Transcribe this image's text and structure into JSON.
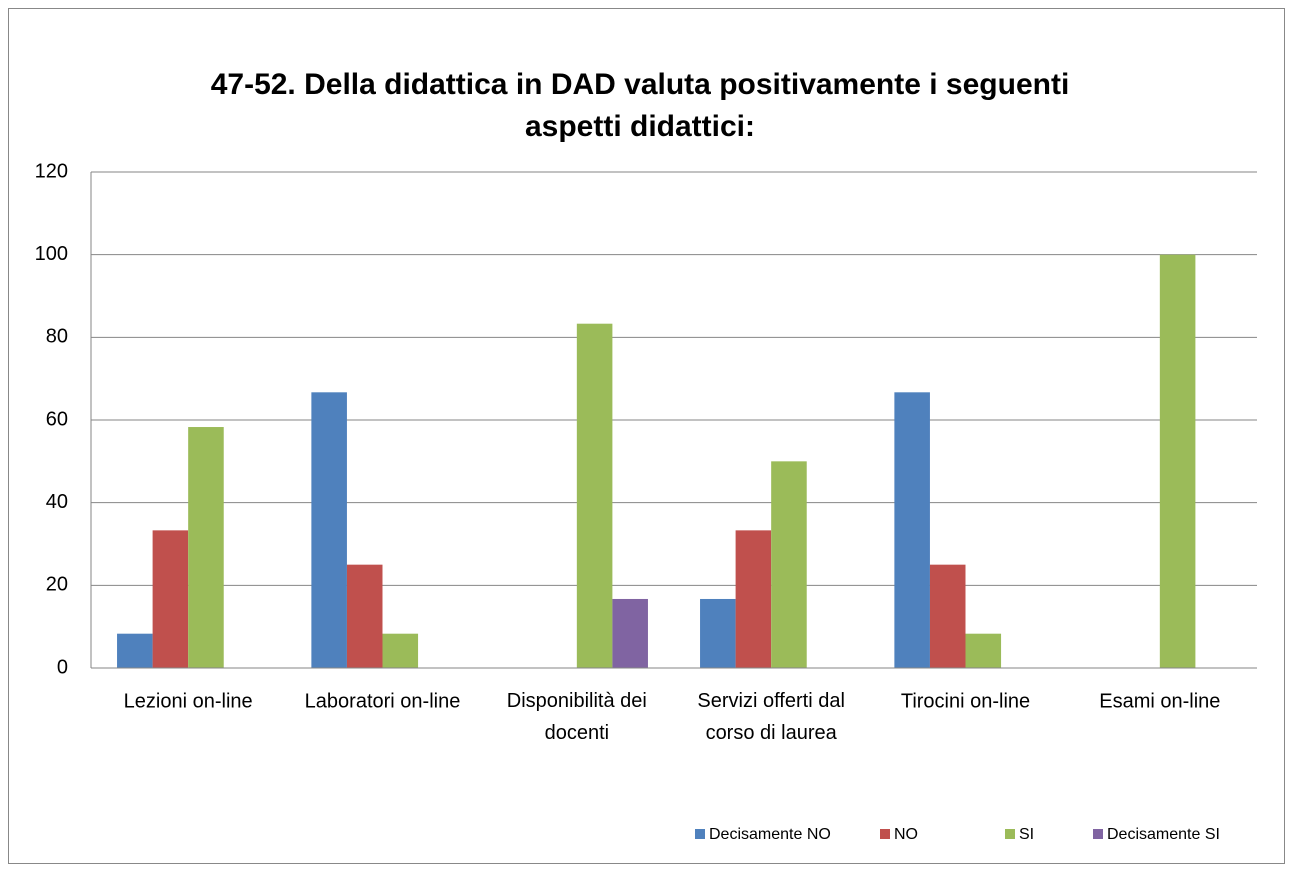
{
  "chart_data": {
    "type": "bar",
    "title_lines": [
      "47-52.  Della didattica in DAD valuta positivamente i seguenti",
      "aspetti didattici:"
    ],
    "categories": [
      "Lezioni on-line",
      "Laboratori on-line",
      "Disponibilità dei docenti",
      "Servizi offerti dal corso di laurea",
      "Tirocini on-line",
      "Esami on-line"
    ],
    "series": [
      {
        "name": "Decisamente NO",
        "color": "#4f81bd",
        "values": [
          8.3,
          66.7,
          0,
          16.7,
          66.7,
          0
        ]
      },
      {
        "name": "NO",
        "color": "#c0504d",
        "values": [
          33.3,
          25,
          0,
          33.3,
          25,
          0
        ]
      },
      {
        "name": "SI",
        "color": "#9bbb59",
        "values": [
          58.3,
          8.3,
          83.3,
          50,
          8.3,
          100
        ]
      },
      {
        "name": "Decisamente SI",
        "color": "#8064a2",
        "values": [
          0,
          0,
          16.7,
          0,
          0,
          0
        ]
      }
    ],
    "ylim": [
      0,
      120
    ],
    "yticks": [
      0,
      20,
      40,
      60,
      80,
      100,
      120
    ],
    "grid": true,
    "legend": "bottom"
  }
}
